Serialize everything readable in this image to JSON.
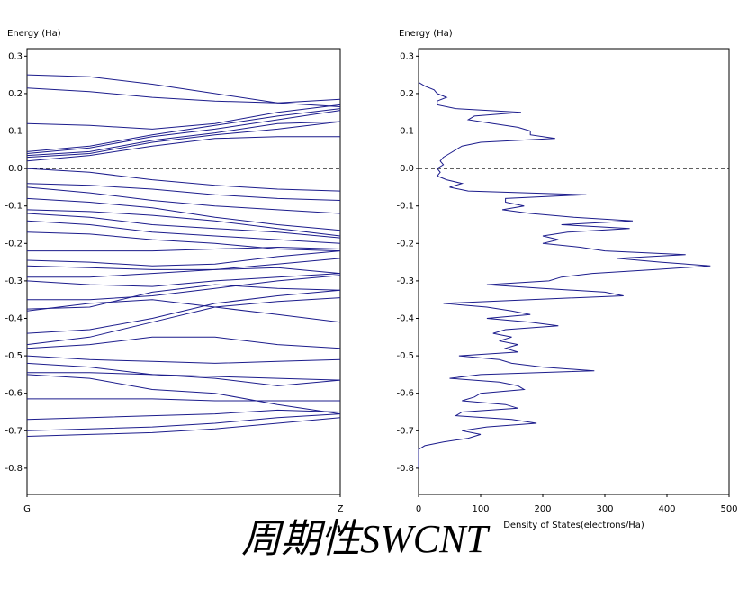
{
  "caption": "周期性SWCNT",
  "chart_data": [
    {
      "type": "band",
      "ylabel": "Energy (Ha)",
      "color": "#1c1c8c",
      "hline": 0,
      "x": [
        0,
        0.2,
        0.4,
        0.6,
        0.8,
        1.0
      ],
      "xlim": [
        0,
        1
      ],
      "xticks": [
        {
          "value": 0,
          "label": "G"
        },
        {
          "value": 1,
          "label": "Z"
        }
      ],
      "ylim": [
        -0.87,
        0.32
      ],
      "yticks": [
        0.3,
        0.2,
        0.1,
        {
          "value": 0,
          "label": "0.0"
        },
        -0.1,
        -0.2,
        -0.3,
        -0.4,
        -0.5,
        -0.6,
        -0.7,
        -0.8
      ],
      "series": [
        {
          "values": [
            0.25,
            0.245,
            0.225,
            0.2,
            0.175,
            0.165
          ]
        },
        {
          "values": [
            0.215,
            0.205,
            0.19,
            0.18,
            0.175,
            0.185
          ]
        },
        {
          "values": [
            0.12,
            0.115,
            0.105,
            0.12,
            0.15,
            0.17
          ]
        },
        {
          "values": [
            0.045,
            0.06,
            0.09,
            0.115,
            0.14,
            0.16
          ]
        },
        {
          "values": [
            0.04,
            0.055,
            0.085,
            0.105,
            0.13,
            0.155
          ]
        },
        {
          "values": [
            0.035,
            0.045,
            0.075,
            0.095,
            0.12,
            0.125
          ]
        },
        {
          "values": [
            0.03,
            0.04,
            0.07,
            0.09,
            0.105,
            0.125
          ]
        },
        {
          "values": [
            0.02,
            0.035,
            0.06,
            0.08,
            0.085,
            0.085
          ]
        },
        {
          "values": [
            0.0,
            -0.01,
            -0.03,
            -0.045,
            -0.055,
            -0.06
          ]
        },
        {
          "values": [
            -0.04,
            -0.045,
            -0.055,
            -0.07,
            -0.08,
            -0.085
          ]
        },
        {
          "values": [
            -0.05,
            -0.065,
            -0.085,
            -0.1,
            -0.11,
            -0.12
          ]
        },
        {
          "values": [
            -0.08,
            -0.09,
            -0.105,
            -0.13,
            -0.15,
            -0.165
          ]
        },
        {
          "values": [
            -0.11,
            -0.115,
            -0.125,
            -0.14,
            -0.16,
            -0.18
          ]
        },
        {
          "values": [
            -0.12,
            -0.13,
            -0.15,
            -0.16,
            -0.17,
            -0.185
          ]
        },
        {
          "values": [
            -0.14,
            -0.15,
            -0.17,
            -0.18,
            -0.19,
            -0.2
          ]
        },
        {
          "values": [
            -0.17,
            -0.175,
            -0.19,
            -0.2,
            -0.215,
            -0.22
          ]
        },
        {
          "values": [
            -0.22,
            -0.22,
            -0.22,
            -0.215,
            -0.21,
            -0.215
          ]
        },
        {
          "values": [
            -0.245,
            -0.25,
            -0.26,
            -0.255,
            -0.235,
            -0.22
          ]
        },
        {
          "values": [
            -0.26,
            -0.265,
            -0.27,
            -0.27,
            -0.255,
            -0.24
          ]
        },
        {
          "values": [
            -0.29,
            -0.29,
            -0.28,
            -0.27,
            -0.265,
            -0.28
          ]
        },
        {
          "values": [
            -0.3,
            -0.31,
            -0.315,
            -0.3,
            -0.29,
            -0.28
          ]
        },
        {
          "values": [
            -0.35,
            -0.35,
            -0.34,
            -0.32,
            -0.3,
            -0.285
          ]
        },
        {
          "values": [
            -0.375,
            -0.37,
            -0.33,
            -0.31,
            -0.32,
            -0.325
          ]
        },
        {
          "values": [
            -0.38,
            -0.36,
            -0.35,
            -0.37,
            -0.39,
            -0.41
          ]
        },
        {
          "values": [
            -0.44,
            -0.43,
            -0.4,
            -0.36,
            -0.34,
            -0.325
          ]
        },
        {
          "values": [
            -0.47,
            -0.45,
            -0.41,
            -0.37,
            -0.355,
            -0.345
          ]
        },
        {
          "values": [
            -0.48,
            -0.47,
            -0.45,
            -0.45,
            -0.47,
            -0.48
          ]
        },
        {
          "values": [
            -0.5,
            -0.51,
            -0.515,
            -0.52,
            -0.515,
            -0.51
          ]
        },
        {
          "values": [
            -0.52,
            -0.53,
            -0.55,
            -0.56,
            -0.58,
            -0.565
          ]
        },
        {
          "values": [
            -0.545,
            -0.545,
            -0.55,
            -0.555,
            -0.56,
            -0.565
          ]
        },
        {
          "values": [
            -0.55,
            -0.56,
            -0.59,
            -0.6,
            -0.63,
            -0.655
          ]
        },
        {
          "values": [
            -0.615,
            -0.615,
            -0.615,
            -0.62,
            -0.62,
            -0.62
          ]
        },
        {
          "values": [
            -0.67,
            -0.665,
            -0.66,
            -0.655,
            -0.645,
            -0.65
          ]
        },
        {
          "values": [
            -0.7,
            -0.695,
            -0.69,
            -0.68,
            -0.665,
            -0.655
          ]
        },
        {
          "values": [
            -0.715,
            -0.71,
            -0.705,
            -0.695,
            -0.68,
            -0.665
          ]
        }
      ]
    },
    {
      "type": "dos",
      "ylabel": "Energy (Ha)",
      "xlabel": "Density of States(electrons/Ha)",
      "color": "#1c1c8c",
      "hline": 0,
      "xlim": [
        0,
        500
      ],
      "xticks": [
        0,
        100,
        200,
        300,
        400,
        500
      ],
      "ylim": [
        -0.87,
        0.32
      ],
      "yticks": [
        0.3,
        0.2,
        0.1,
        {
          "value": 0,
          "label": "0.0"
        },
        -0.1,
        -0.2,
        -0.3,
        -0.4,
        -0.5,
        -0.6,
        -0.7,
        -0.8
      ],
      "y": [
        0.23,
        0.22,
        0.21,
        0.2,
        0.19,
        0.18,
        0.17,
        0.16,
        0.15,
        0.14,
        0.13,
        0.12,
        0.11,
        0.1,
        0.09,
        0.08,
        0.07,
        0.06,
        0.05,
        0.04,
        0.03,
        0.02,
        0.01,
        0.0,
        -0.01,
        -0.02,
        -0.03,
        -0.04,
        -0.05,
        -0.06,
        -0.07,
        -0.08,
        -0.09,
        -0.1,
        -0.11,
        -0.12,
        -0.13,
        -0.14,
        -0.15,
        -0.16,
        -0.17,
        -0.18,
        -0.19,
        -0.2,
        -0.21,
        -0.22,
        -0.23,
        -0.24,
        -0.25,
        -0.26,
        -0.27,
        -0.28,
        -0.29,
        -0.3,
        -0.31,
        -0.32,
        -0.33,
        -0.34,
        -0.35,
        -0.36,
        -0.37,
        -0.38,
        -0.39,
        -0.4,
        -0.41,
        -0.42,
        -0.43,
        -0.44,
        -0.45,
        -0.46,
        -0.47,
        -0.48,
        -0.49,
        -0.5,
        -0.51,
        -0.52,
        -0.53,
        -0.54,
        -0.55,
        -0.56,
        -0.57,
        -0.58,
        -0.59,
        -0.6,
        -0.61,
        -0.62,
        -0.63,
        -0.64,
        -0.65,
        -0.66,
        -0.67,
        -0.68,
        -0.69,
        -0.7,
        -0.71,
        -0.72,
        -0.73,
        -0.74,
        -0.75,
        -0.8
      ],
      "values": [
        0,
        10,
        25,
        30,
        45,
        30,
        30,
        60,
        165,
        90,
        80,
        120,
        160,
        180,
        180,
        220,
        100,
        70,
        60,
        50,
        40,
        35,
        40,
        30,
        35,
        30,
        45,
        70,
        50,
        80,
        270,
        140,
        140,
        170,
        135,
        180,
        250,
        345,
        230,
        340,
        240,
        200,
        225,
        200,
        260,
        300,
        430,
        320,
        390,
        470,
        380,
        280,
        230,
        210,
        110,
        200,
        300,
        330,
        180,
        40,
        110,
        150,
        180,
        110,
        180,
        225,
        140,
        120,
        150,
        130,
        160,
        140,
        160,
        65,
        130,
        150,
        200,
        283,
        100,
        50,
        130,
        160,
        170,
        100,
        90,
        70,
        140,
        160,
        70,
        60,
        150,
        190,
        110,
        70,
        100,
        80,
        40,
        10,
        0,
        0
      ]
    }
  ]
}
